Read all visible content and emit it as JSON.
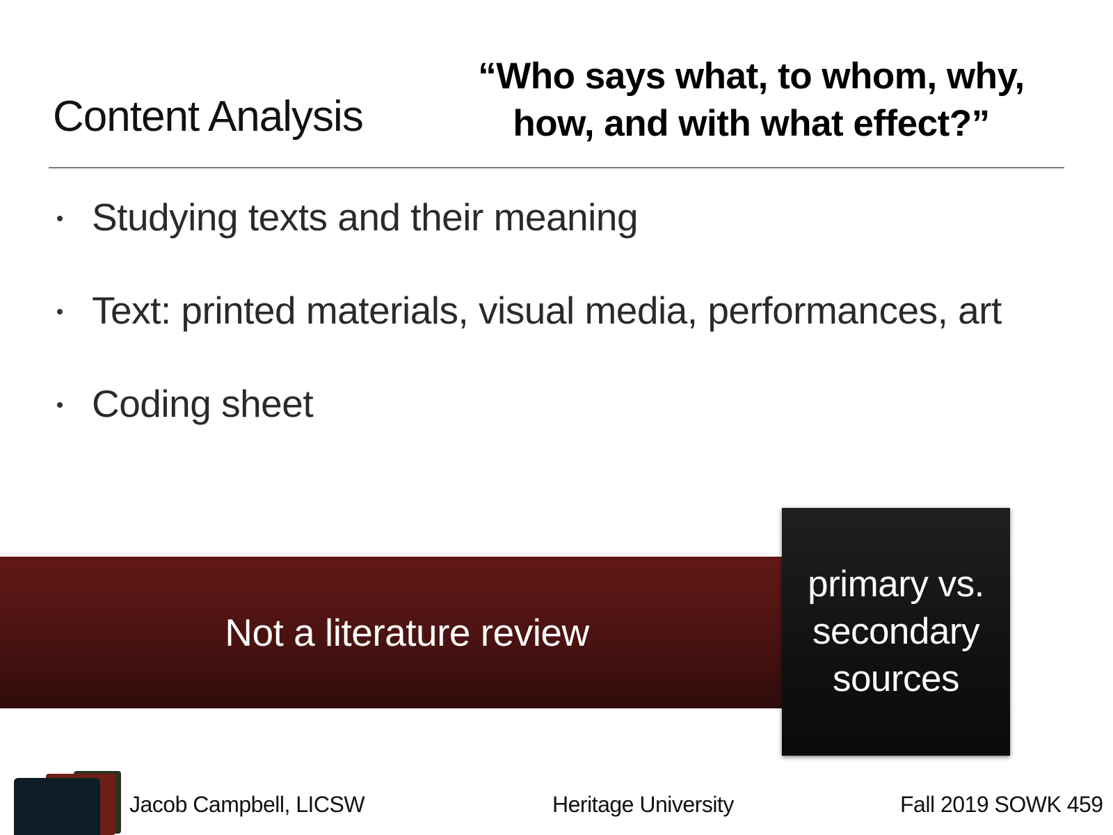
{
  "slide": {
    "title": "Content Analysis",
    "quote_line1": "“Who says what, to whom, why,",
    "quote_line2": "how, and with what effect?”",
    "bullets": [
      {
        "text": "Studying texts and their meaning"
      },
      {
        "text": "Text: printed materials, visual media, performances, art"
      },
      {
        "text": "Coding sheet"
      }
    ],
    "banner_text": "Not a literature review",
    "callout_line1": "primary vs.",
    "callout_line2": "secondary",
    "callout_line3": "sources"
  },
  "footer": {
    "left": "Jacob Campbell, LICSW",
    "center": "Heritage University",
    "right": "Fall 2019 SOWK 459"
  },
  "colors": {
    "banner": "#4a1211",
    "callout": "#111111",
    "logo_front": "#0f1d26",
    "logo_mid": "#6e1f18",
    "logo_back": "#2a3122"
  },
  "icons": {
    "logo": "stacked-folders-logo",
    "bullet": "bullet-dot"
  }
}
